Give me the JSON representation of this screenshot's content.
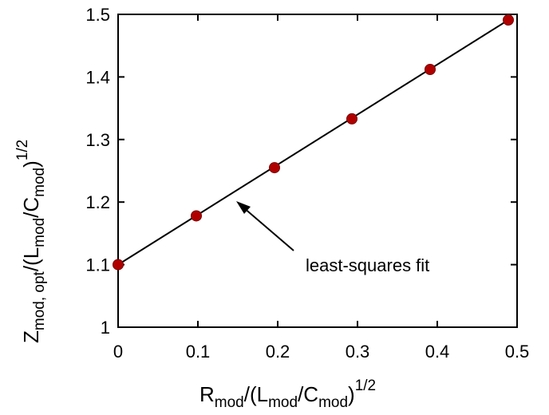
{
  "chart_data": {
    "type": "scatter",
    "x": [
      0,
      0.098,
      0.196,
      0.293,
      0.391,
      0.489
    ],
    "y": [
      1.1,
      1.178,
      1.255,
      1.333,
      1.412,
      1.491
    ],
    "marker_color": "#b00000",
    "fit_line": {
      "label": "least-squares fit",
      "x": [
        0,
        0.489
      ],
      "y": [
        1.1,
        1.491
      ]
    },
    "xlim": [
      0,
      0.5
    ],
    "ylim": [
      1.0,
      1.5
    ],
    "xticks": [
      0,
      0.1,
      0.2,
      0.3,
      0.4,
      0.5
    ],
    "xtick_labels": [
      "0",
      "0.1",
      "0.2",
      "0.3",
      "0.4",
      "0.5"
    ],
    "yticks": [
      1.0,
      1.1,
      1.2,
      1.3,
      1.4,
      1.5
    ],
    "ytick_labels": [
      "1",
      "1.1",
      "1.2",
      "1.3",
      "1.4",
      "1.5"
    ],
    "xlabel": {
      "R": "R",
      "sub_mod": "mod",
      "slash_paren": "/(L",
      "sub_mod2": "mod",
      "slash_c": "/C",
      "sub_mod3": "mod",
      "close": ")",
      "exp": "1/2"
    },
    "ylabel": {
      "Z": "Z",
      "sub": "mod, opt",
      "slash_paren": "/(L",
      "sub_mod2": "mod",
      "slash_c": "/C",
      "sub_mod3": "mod",
      "close": ")",
      "exp": "1/2"
    },
    "grid": false
  }
}
